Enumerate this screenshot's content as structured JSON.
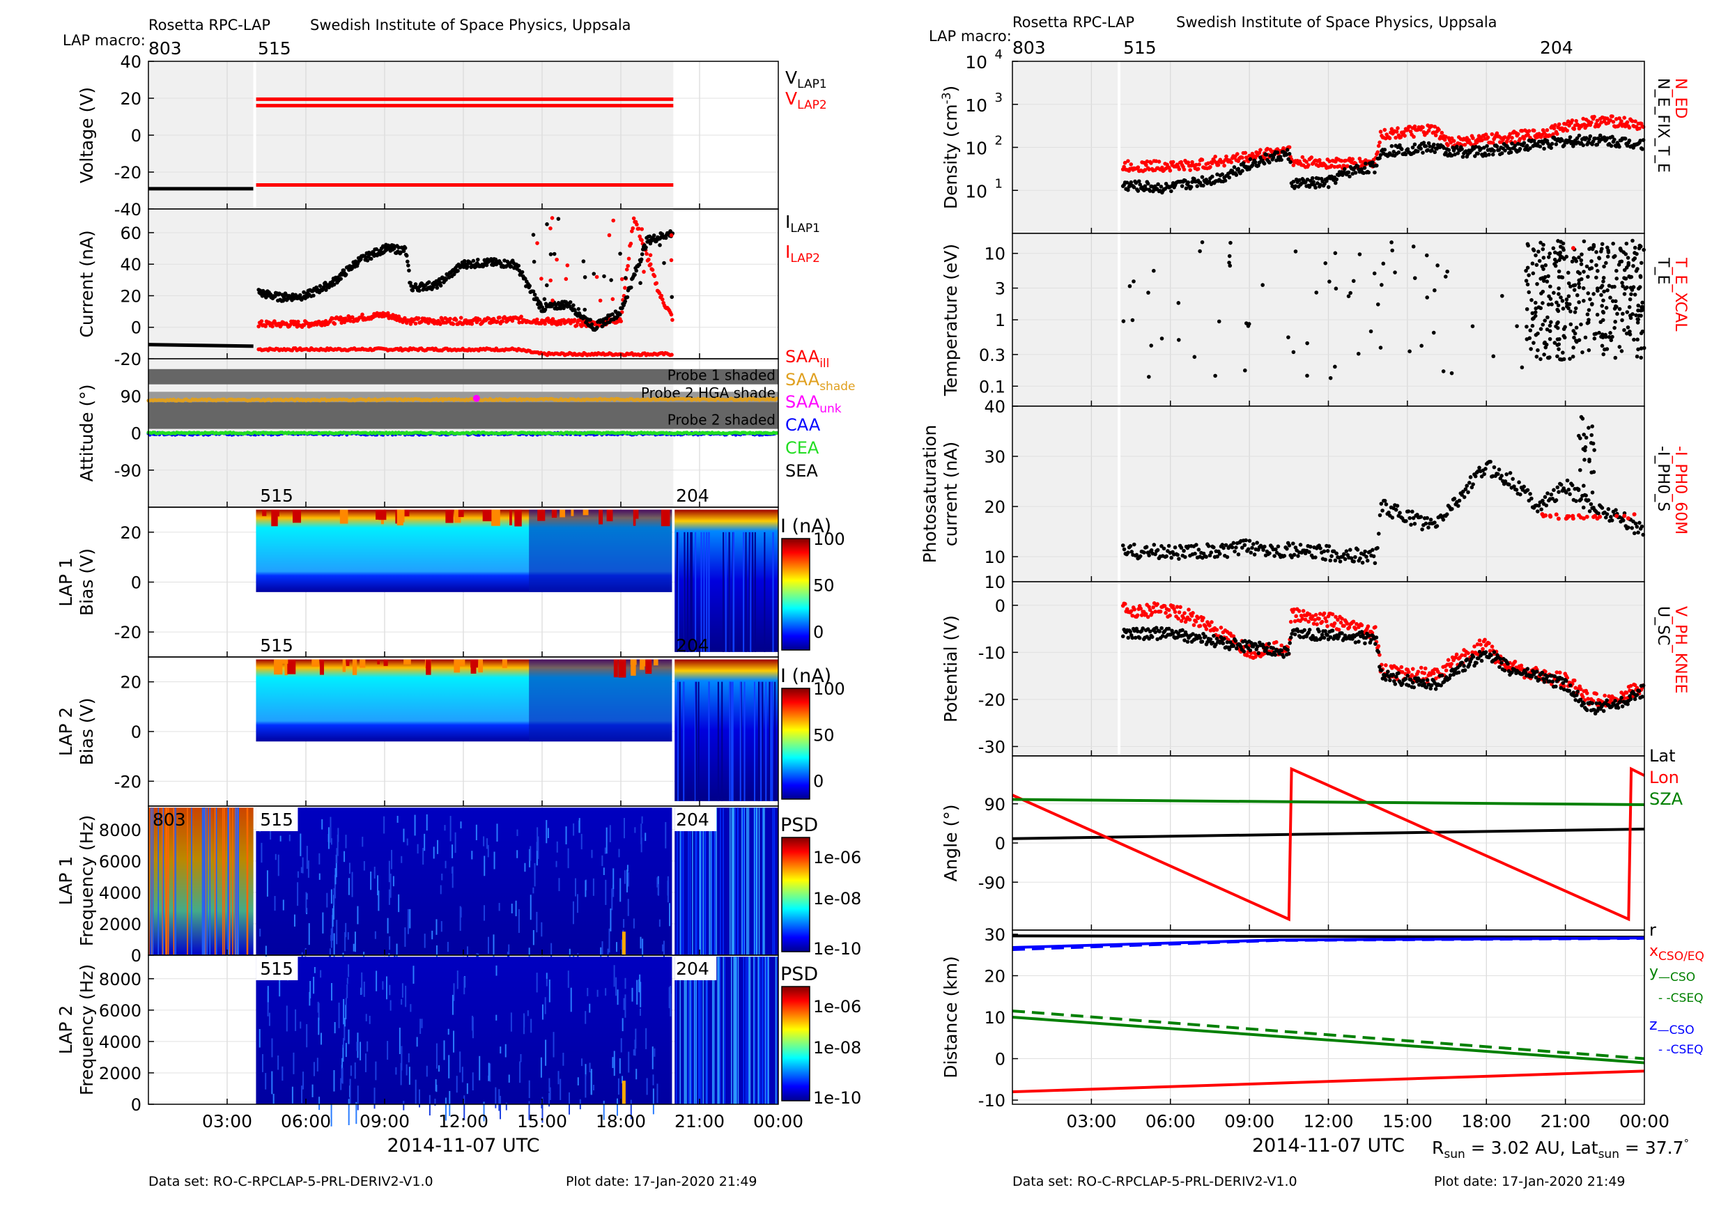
{
  "colors": {
    "black": "#000000",
    "red": "#ff0000",
    "green": "#008000",
    "bright_green": "#22dd22",
    "blue": "#0000ff",
    "orange": "#e0a020",
    "magenta": "#ff00ff",
    "grey_shade": "#f0f0f0",
    "dark_shade": "#666666"
  },
  "left": {
    "header": {
      "mission": "Rosetta RPC-LAP",
      "institute": "Swedish Institute of Space Physics, Uppsala",
      "macro_label": "LAP macro:",
      "macros": [
        "803",
        "515"
      ]
    },
    "footer": {
      "dataset": "Data set: RO-C-RPCLAP-5-PRL-DERIV2-V1.0",
      "plot_date": "Plot date: 17-Jan-2020 21:49"
    },
    "xaxis": {
      "title": "2014-11-07 UTC",
      "ticks": [
        "03:00",
        "06:00",
        "09:00",
        "12:00",
        "15:00",
        "18:00",
        "21:00",
        "00:00"
      ],
      "range_hours": [
        0,
        24
      ]
    }
  },
  "right": {
    "header": {
      "mission": "Rosetta RPC-LAP",
      "institute": "Swedish Institute of Space Physics, Uppsala",
      "macro_label": "LAP macro:",
      "macros": [
        "803",
        "515",
        "204"
      ]
    },
    "footer": {
      "dataset": "Data set: RO-C-RPCLAP-5-PRL-DERIV2-V1.0",
      "plot_date": "Plot date: 17-Jan-2020 21:49",
      "rsun_label": "R",
      "rsun_sub": "sun",
      "rsun_value": " = 3.02 AU, Lat",
      "lat_sub": "sun",
      "lat_value": " = 37.7",
      "deg": "°"
    },
    "xaxis": {
      "title": "2014-11-07 UTC",
      "ticks": [
        "03:00",
        "06:00",
        "09:00",
        "12:00",
        "15:00",
        "18:00",
        "21:00",
        "00:00"
      ],
      "range_hours": [
        0,
        24
      ]
    }
  },
  "chart_data": [
    {
      "type": "line",
      "panel": "voltage",
      "ylabel": "Voltage (V)",
      "ylim": [
        -40,
        40
      ],
      "yticks": [
        "40",
        "20",
        "0",
        "-20",
        "-40"
      ],
      "series": [
        {
          "name": "V_LAP1",
          "label": "V",
          "sub": "LAP1",
          "segments": [
            [
              [
                0,
                -29
              ],
              [
                4,
                -29
              ]
            ]
          ]
        },
        {
          "name": "V_LAP2",
          "label": "V",
          "sub": "LAP2",
          "segments": [
            [
              [
                4.1,
                19.5
              ],
              [
                20,
                19.5
              ]
            ],
            [
              [
                4.1,
                16
              ],
              [
                20,
                16
              ]
            ],
            [
              [
                4.1,
                -27
              ],
              [
                20,
                -27
              ]
            ]
          ]
        }
      ]
    },
    {
      "type": "scatter",
      "panel": "current",
      "ylabel": "Current (nA)",
      "ylim": [
        -20,
        75
      ],
      "yticks": [
        "60",
        "40",
        "20",
        "0",
        "-20"
      ],
      "series": [
        {
          "name": "I_LAP1",
          "label": "I",
          "sub": "LAP1",
          "trend": [
            [
              0,
              -11
            ],
            [
              4,
              -12
            ],
            [
              4.2,
              22
            ],
            [
              5,
              19
            ],
            [
              6,
              20
            ],
            [
              7,
              28
            ],
            [
              8,
              42
            ],
            [
              9,
              50
            ],
            [
              9.8,
              49
            ],
            [
              10,
              25
            ],
            [
              11,
              27
            ],
            [
              12,
              40
            ],
            [
              13,
              41
            ],
            [
              14,
              40
            ],
            [
              14.5,
              25
            ],
            [
              15,
              12
            ],
            [
              16,
              15
            ],
            [
              17,
              0
            ],
            [
              18,
              10
            ],
            [
              19,
              55
            ],
            [
              20,
              60
            ]
          ]
        },
        {
          "name": "I_LAP2",
          "label": "I",
          "sub": "LAP2",
          "trend": [
            [
              4.2,
              2
            ],
            [
              6,
              2
            ],
            [
              9,
              8
            ],
            [
              10,
              4
            ],
            [
              13,
              4
            ],
            [
              14,
              5
            ],
            [
              17,
              2
            ],
            [
              18,
              5
            ],
            [
              18.5,
              70
            ],
            [
              19.5,
              20
            ],
            [
              20,
              5
            ]
          ]
        },
        {
          "name": "I_LAP2_low",
          "trend": [
            [
              4.2,
              -14
            ],
            [
              14,
              -14
            ],
            [
              15,
              -17
            ],
            [
              20,
              -17
            ]
          ]
        }
      ]
    },
    {
      "type": "line",
      "panel": "attitude",
      "ylabel": "Attitude (°)",
      "ylim": [
        -180,
        180
      ],
      "yticks": [
        "90",
        "0",
        "-90"
      ],
      "bands": [
        {
          "label": "Probe 1 shaded",
          "from": 118,
          "to": 155
        },
        {
          "label": "Probe 2 HGA shade",
          "from": 75,
          "to": 100
        },
        {
          "label": "Probe 2 shaded",
          "from": 10,
          "to": 75
        }
      ],
      "series": [
        {
          "name": "SAA_ill",
          "label": "SAA",
          "sub": "ill",
          "value": null
        },
        {
          "name": "SAA_shade",
          "label": "SAA",
          "sub": "shade",
          "value": 80
        },
        {
          "name": "SAA_unk",
          "label": "SAA",
          "sub": "unk",
          "value": 82
        },
        {
          "name": "CAA",
          "label": "CAA",
          "value": -2
        },
        {
          "name": "CEA",
          "label": "CEA",
          "value": 0
        },
        {
          "name": "SEA",
          "label": "SEA",
          "value": null
        }
      ]
    },
    {
      "type": "heatmap",
      "panel": "lap1_bias",
      "ylabel": "LAP 1 Bias (V)",
      "ylim": [
        -30,
        30
      ],
      "yticks": [
        "20",
        "0",
        "-20"
      ],
      "colorbar": {
        "title": "I (nA)",
        "ticks": [
          "100",
          "50",
          "0"
        ],
        "range": [
          -20,
          100
        ]
      },
      "macro_labels": [
        "515",
        "204"
      ]
    },
    {
      "type": "heatmap",
      "panel": "lap2_bias",
      "ylabel": "LAP 2 Bias (V)",
      "ylim": [
        -30,
        30
      ],
      "yticks": [
        "20",
        "0",
        "-20"
      ],
      "colorbar": {
        "title": "I (nA)",
        "ticks": [
          "100",
          "50",
          "0"
        ],
        "range": [
          -20,
          100
        ]
      },
      "macro_labels": [
        "515",
        "204"
      ]
    },
    {
      "type": "heatmap",
      "panel": "lap1_freq",
      "ylabel": "LAP 1 Frequency (Hz)",
      "ylim": [
        0,
        9500
      ],
      "yticks": [
        "8000",
        "6000",
        "4000",
        "2000",
        "0"
      ],
      "colorbar": {
        "title": "PSD",
        "ticks": [
          "1e-06",
          "1e-08",
          "1e-10"
        ]
      },
      "macro_labels": [
        "803",
        "515",
        "204"
      ]
    },
    {
      "type": "heatmap",
      "panel": "lap2_freq",
      "ylabel": "LAP 2 Frequency (Hz)",
      "ylim": [
        0,
        9500
      ],
      "yticks": [
        "8000",
        "6000",
        "4000",
        "2000",
        "0"
      ],
      "colorbar": {
        "title": "PSD",
        "ticks": [
          "1e-06",
          "1e-08",
          "1e-10"
        ]
      },
      "macro_labels": [
        "515",
        "204"
      ]
    },
    {
      "type": "scatter",
      "panel": "density",
      "ylabel": "Density (cm",
      "ylabel_sup": "-3",
      "ylabel_end": ")",
      "yscale": "log",
      "ylim": [
        1,
        10000
      ],
      "yticks": [
        {
          "base": "10",
          "exp": "4"
        },
        {
          "base": "10",
          "exp": "3"
        },
        {
          "base": "10",
          "exp": "2"
        },
        {
          "base": "10",
          "exp": "1"
        }
      ],
      "series": [
        {
          "name": "N_ED",
          "trend": [
            [
              4.2,
              36
            ],
            [
              7,
              38
            ],
            [
              9,
              60
            ],
            [
              10.5,
              90
            ],
            [
              10.6,
              45
            ],
            [
              13,
              42
            ],
            [
              13.8,
              45
            ],
            [
              14,
              200
            ],
            [
              16,
              250
            ],
            [
              16.5,
              130
            ],
            [
              18,
              150
            ],
            [
              20,
              200
            ],
            [
              21,
              300
            ],
            [
              22,
              400
            ],
            [
              23,
              400
            ],
            [
              24,
              300
            ]
          ]
        },
        {
          "name": "N_E_FIX_T_E",
          "trend": [
            [
              4.2,
              13
            ],
            [
              6,
              11
            ],
            [
              8,
              20
            ],
            [
              9.5,
              50
            ],
            [
              10.5,
              70
            ],
            [
              10.6,
              14
            ],
            [
              12,
              15
            ],
            [
              13,
              30
            ],
            [
              13.8,
              35
            ],
            [
              14,
              80
            ],
            [
              16,
              100
            ],
            [
              16.5,
              80
            ],
            [
              18,
              80
            ],
            [
              20,
              120
            ],
            [
              22,
              150
            ],
            [
              24,
              120
            ]
          ]
        }
      ]
    },
    {
      "type": "scatter",
      "panel": "temperature",
      "ylabel": "Temperature (eV)",
      "yscale": "log",
      "ylim": [
        0.05,
        20
      ],
      "yticks": [
        "10",
        "3",
        "1",
        "0.3",
        "0.1"
      ],
      "series": [
        {
          "name": "T_E_XCAL"
        },
        {
          "name": "T_E"
        }
      ]
    },
    {
      "type": "scatter",
      "panel": "photosaturation",
      "ylabel": "Photosaturation current (nA)",
      "ylim": [
        5,
        40
      ],
      "yticks": [
        "40",
        "30",
        "20",
        "10"
      ],
      "series": [
        {
          "name": "-I_PH0_60M",
          "trend": [
            [
              20,
              18
            ],
            [
              22,
              18
            ],
            [
              23,
              17
            ]
          ]
        },
        {
          "name": "-I_PH0_S",
          "trend": [
            [
              4.2,
              11
            ],
            [
              8,
              11
            ],
            [
              9,
              12
            ],
            [
              11,
              11
            ],
            [
              13.8,
              10
            ],
            [
              14,
              20
            ],
            [
              15,
              18
            ],
            [
              16,
              16
            ],
            [
              17,
              22
            ],
            [
              18,
              28
            ],
            [
              19,
              25
            ],
            [
              20,
              20
            ],
            [
              21,
              24
            ],
            [
              22,
              20
            ],
            [
              23,
              18
            ],
            [
              24,
              15
            ]
          ]
        }
      ]
    },
    {
      "type": "scatter",
      "panel": "potential",
      "ylabel": "Potential (V)",
      "ylim": [
        -32,
        5
      ],
      "yticks": [
        "0",
        "-10",
        "-20",
        "-30"
      ],
      "series": [
        {
          "name": "V_PH_KNEE",
          "trend": [
            [
              4.2,
              -1
            ],
            [
              6,
              -1
            ],
            [
              7,
              -3
            ],
            [
              9,
              -10
            ],
            [
              10.5,
              -9
            ],
            [
              10.6,
              -2
            ],
            [
              12,
              -3
            ],
            [
              13,
              -5
            ],
            [
              13.8,
              -6
            ],
            [
              14,
              -14
            ],
            [
              16,
              -15
            ],
            [
              18,
              -8
            ],
            [
              18.5,
              -12
            ],
            [
              20,
              -15
            ],
            [
              21,
              -16
            ],
            [
              22,
              -20
            ],
            [
              23,
              -20
            ],
            [
              24,
              -17
            ]
          ]
        },
        {
          "name": "U_SC",
          "trend": [
            [
              4.2,
              -6
            ],
            [
              6,
              -6
            ],
            [
              8,
              -8
            ],
            [
              10.5,
              -10
            ],
            [
              10.6,
              -6
            ],
            [
              13.8,
              -7
            ],
            [
              14,
              -15
            ],
            [
              16,
              -17
            ],
            [
              18,
              -10
            ],
            [
              19,
              -14
            ],
            [
              20,
              -15
            ],
            [
              21,
              -17
            ],
            [
              22,
              -22
            ],
            [
              23,
              -21
            ],
            [
              24,
              -18
            ]
          ]
        }
      ]
    },
    {
      "type": "line",
      "panel": "angle",
      "ylabel": "Angle (°)",
      "ylim": [
        -200,
        200
      ],
      "yticks": [
        "90",
        "0",
        "-90"
      ],
      "series": [
        {
          "name": "Lat",
          "points": [
            [
              0,
              10
            ],
            [
              24,
              32
            ]
          ]
        },
        {
          "name": "Lon",
          "points": [
            [
              0,
              110
            ],
            [
              10.5,
              -175
            ],
            [
              10.6,
              170
            ],
            [
              23.4,
              -175
            ],
            [
              23.5,
              170
            ],
            [
              24,
              155
            ]
          ]
        },
        {
          "name": "SZA",
          "points": [
            [
              0,
              100
            ],
            [
              24,
              88
            ]
          ]
        }
      ]
    },
    {
      "type": "line",
      "panel": "distance",
      "ylabel": "Distance (km)",
      "ylim": [
        -11,
        31
      ],
      "yticks": [
        "30",
        "20",
        "10",
        "0",
        "-10"
      ],
      "series": [
        {
          "name": "r",
          "points": [
            [
              0,
              29.6
            ],
            [
              24,
              29.3
            ]
          ]
        },
        {
          "name": "x_CSO/EQ",
          "points": [
            [
              0,
              -8
            ],
            [
              24,
              -3
            ]
          ]
        },
        {
          "name": "y_CSO",
          "points": [
            [
              0,
              10
            ],
            [
              24,
              -1
            ]
          ]
        },
        {
          "name": "y_CSEQ",
          "points": [
            [
              0,
              11.5
            ],
            [
              24,
              0
            ]
          ]
        },
        {
          "name": "z_CSO",
          "points": [
            [
              0,
              26.8
            ],
            [
              10,
              28.6
            ],
            [
              24,
              29.1
            ]
          ]
        },
        {
          "name": "z_CSEQ",
          "points": [
            [
              0,
              26.3
            ],
            [
              10,
              28.5
            ],
            [
              24,
              29.0
            ]
          ]
        }
      ],
      "legend": {
        "r": "r",
        "x": "x",
        "x_sub": "CSO/EQ",
        "y": "y",
        "y_sub": "—CSO",
        "y_sub2": "- -CSEQ",
        "z": "z",
        "z_sub": "—CSO",
        "z_sub2": "- -CSEQ"
      }
    }
  ],
  "labels": {
    "left_legends": {
      "attitude_bands": [
        "Probe 1 shaded",
        "Probe 2 HGA shade",
        "Probe 2 shaded"
      ],
      "bias_cbar": "I (nA)",
      "psd": "PSD"
    },
    "right_legends": {
      "density": [
        "N_ED",
        "N_E_FIX_T_E"
      ],
      "temperature": [
        "T_E_XCAL",
        "T_E"
      ],
      "photosat": [
        "-I_PH0_60M",
        "-I_PH0_S"
      ],
      "potential": [
        "V_PH_KNEE",
        "U_SC"
      ],
      "angle": [
        "Lat",
        "Lon",
        "SZA"
      ]
    }
  }
}
